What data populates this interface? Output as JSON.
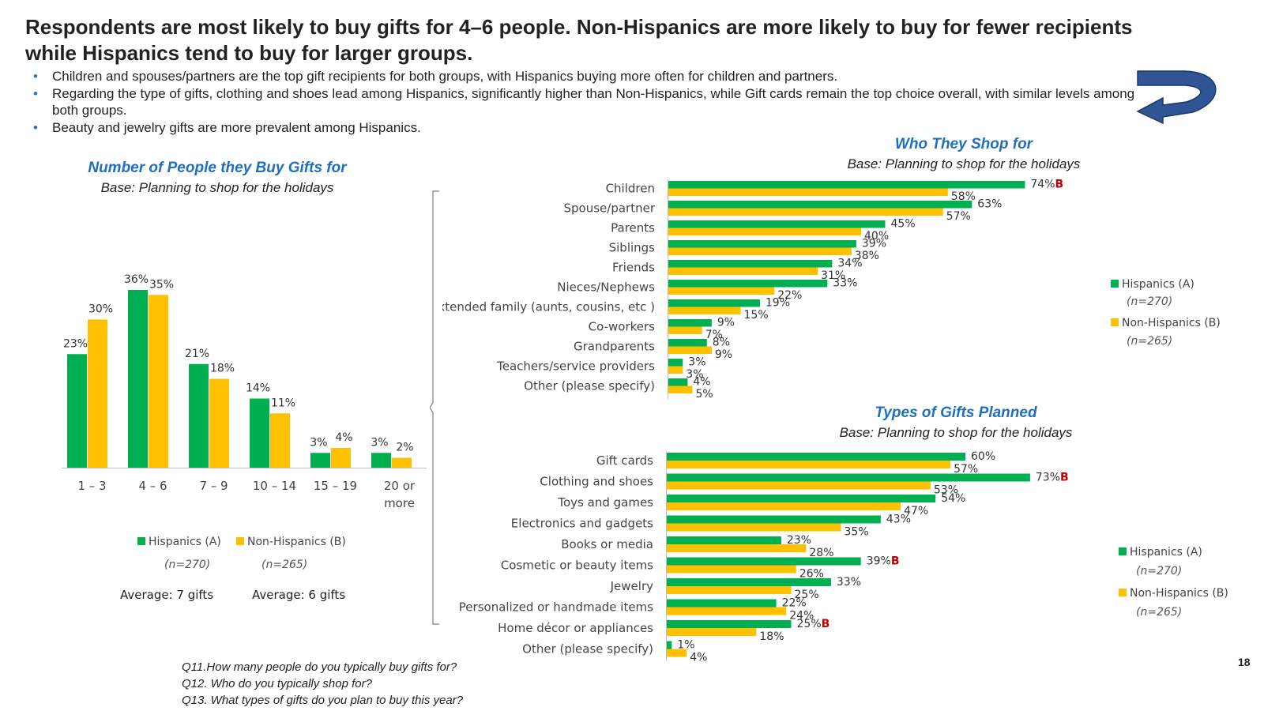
{
  "title": "Respondents are most likely to buy gifts for 4–6 people. Non-Hispanics are more likely to buy for fewer recipients while Hispanics tend to buy for larger groups.",
  "bullets": [
    "Children and spouses/partners are the top gift recipients for both groups, with Hispanics buying more often for children and partners.",
    "Regarding the type of gifts, clothing and shoes lead among Hispanics, significantly higher than Non-Hispanics, while  Gift cards remain the top choice overall, with similar levels among  both groups.",
    "Beauty and jewelry gifts are more prevalent among Hispanics."
  ],
  "colors": {
    "hispanics": "#00b050",
    "non_hispanics": "#ffc000",
    "sig": "#c00000",
    "title_blue": "#1f6fbf",
    "arrow": "#2f5597"
  },
  "legend": {
    "hispanics": "Hispanics (A)",
    "hispanics_n": "(n=270)",
    "non_hispanics": "Non-Hispanics (B)",
    "non_hispanics_n": "(n=265)"
  },
  "averages": {
    "hispanics": "Average: 7 gifts",
    "non_hispanics": "Average: 6 gifts"
  },
  "questions": [
    "Q11.How many people do you typically buy gifts for?",
    "Q12. Who do you typically shop for?",
    "Q13. What types of gifts do you plan to buy this year?"
  ],
  "page_number": "18",
  "chart_data": [
    {
      "type": "bar",
      "title": "Number of People they Buy Gifts for",
      "subtitle": "Base: Planning to shop for the holidays",
      "categories": [
        "1 – 3",
        "4 – 6",
        "7 – 9",
        "10 – 14",
        "15 – 19",
        "20 or more"
      ],
      "series": [
        {
          "name": "Hispanics (A)",
          "values": [
            23,
            36,
            21,
            14,
            3,
            3
          ],
          "labels": [
            "23%",
            "36%",
            "21%",
            "14%",
            "3%",
            "3%"
          ]
        },
        {
          "name": "Non-Hispanics (B)",
          "values": [
            30,
            35,
            18,
            11,
            4,
            2
          ],
          "labels": [
            "30%",
            "35%",
            "18%",
            "11%",
            "4%",
            "2%"
          ]
        }
      ],
      "ylim": [
        0,
        40
      ]
    },
    {
      "type": "bar",
      "orientation": "horizontal",
      "title": "Who They Shop for",
      "subtitle": "Base: Planning to shop for the holidays",
      "categories": [
        "Children",
        "Spouse/partner",
        "Parents",
        "Siblings",
        "Friends",
        "Nieces/Nephews",
        "Extended family (aunts, cousins, etc )",
        "Co-workers",
        "Grandparents",
        "Teachers/service providers",
        "Other (please specify)"
      ],
      "series": [
        {
          "name": "Hispanics (A)",
          "values": [
            74,
            63,
            45,
            39,
            34,
            33,
            19,
            9,
            8,
            3,
            4
          ],
          "labels": [
            "74%",
            "63%",
            "45%",
            "39%",
            "34%",
            "33%",
            "19%",
            "9%",
            "8%",
            "3%",
            "4%"
          ],
          "sig": [
            "B",
            "",
            "",
            "",
            "",
            "",
            "",
            "",
            "",
            "",
            ""
          ]
        },
        {
          "name": "Non-Hispanics (B)",
          "values": [
            58,
            57,
            40,
            38,
            31,
            22,
            15,
            7,
            9,
            3,
            5
          ],
          "labels": [
            "58%",
            "57%",
            "40%",
            "38%",
            "31%",
            "22%",
            "15%",
            "7%",
            "9%",
            "3%",
            "5%"
          ]
        }
      ],
      "xlim": [
        0,
        80
      ]
    },
    {
      "type": "bar",
      "orientation": "horizontal",
      "title": "Types of Gifts Planned",
      "subtitle": "Base: Planning to shop for the holidays",
      "categories": [
        "Gift cards",
        "Clothing and shoes",
        "Toys and games",
        "Electronics and gadgets",
        "Books or media",
        "Cosmetic or beauty items",
        "Jewelry",
        "Personalized or handmade items",
        "Home décor or appliances",
        "Other (please specify)"
      ],
      "series": [
        {
          "name": "Hispanics (A)",
          "values": [
            60,
            73,
            54,
            43,
            23,
            39,
            33,
            22,
            25,
            1
          ],
          "labels": [
            "60%",
            "73%",
            "54%",
            "43%",
            "23%",
            "39%",
            "33%",
            "22%",
            "25%",
            "1%"
          ],
          "sig": [
            "",
            "B",
            "",
            "",
            "",
            "B",
            "",
            "",
            "B",
            ""
          ]
        },
        {
          "name": "Non-Hispanics (B)",
          "values": [
            57,
            53,
            47,
            35,
            28,
            26,
            25,
            24,
            18,
            4
          ],
          "labels": [
            "57%",
            "53%",
            "47%",
            "35%",
            "28%",
            "26%",
            "25%",
            "24%",
            "18%",
            "4%"
          ]
        }
      ],
      "xlim": [
        0,
        80
      ]
    }
  ]
}
